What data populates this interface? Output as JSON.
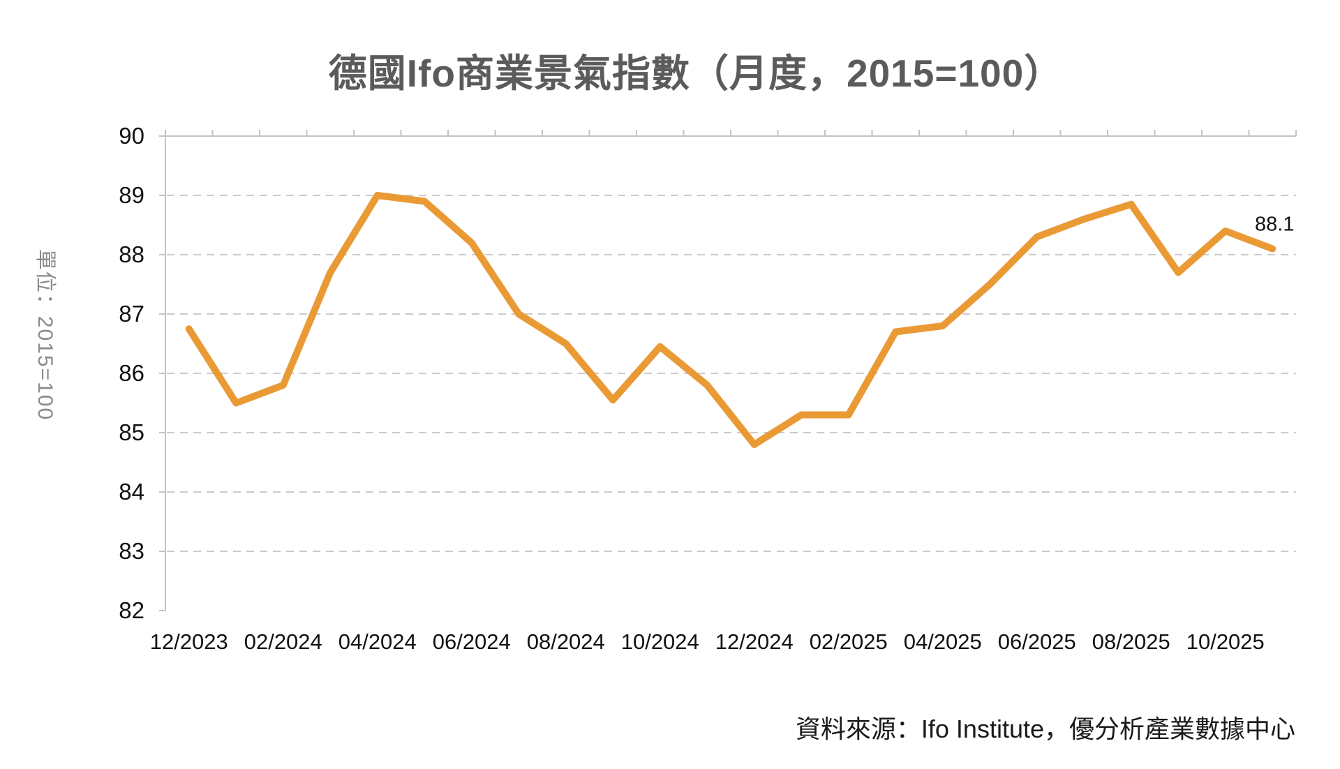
{
  "title": "德國Ifo商業景氣指數（月度，2015=100）",
  "y_axis_title": "單位：2015=100",
  "source_note": "資料來源：Ifo Institute，優分析產業數據中心",
  "last_value_label": "88.1",
  "colors": {
    "line": "#EA9A35",
    "title": "#5B5B5D",
    "axis": "#C2C2CC",
    "grid": "#CBCBCB",
    "tick_label": "#111111",
    "y_axis_title": "#8A8A8A",
    "source": "#1A1A1A",
    "background": "#FFFFFF"
  },
  "chart_data": {
    "type": "line",
    "title": "德國Ifo商業景氣指數（月度，2015=100）",
    "x": [
      "12/2023",
      "01/2024",
      "02/2024",
      "03/2024",
      "04/2024",
      "05/2024",
      "06/2024",
      "07/2024",
      "08/2024",
      "09/2024",
      "10/2024",
      "11/2024",
      "12/2024",
      "01/2025",
      "02/2025",
      "03/2025",
      "04/2025",
      "05/2025",
      "06/2025",
      "07/2025",
      "08/2025",
      "09/2025",
      "10/2025",
      "11/2025"
    ],
    "values": [
      86.75,
      85.5,
      85.8,
      87.7,
      89.0,
      88.9,
      88.2,
      87.0,
      86.5,
      85.55,
      86.45,
      85.8,
      84.8,
      85.3,
      85.3,
      86.7,
      86.8,
      87.5,
      88.3,
      88.6,
      88.85,
      87.7,
      88.4,
      88.1
    ],
    "x_tick_labels": [
      "12/2023",
      "02/2024",
      "04/2024",
      "06/2024",
      "08/2024",
      "10/2024",
      "12/2024",
      "02/2025",
      "04/2025",
      "06/2025",
      "08/2025",
      "10/2025"
    ],
    "x_tick_every": 2,
    "xlabel": "",
    "ylabel": "單位：2015=100",
    "ylim": [
      82,
      90
    ],
    "y_ticks": [
      82,
      83,
      84,
      85,
      86,
      87,
      88,
      89,
      90
    ],
    "grid": "horizontal-dashed",
    "legend": "none",
    "annotation": {
      "text": "88.1",
      "x": "11/2025",
      "y": 88.1
    }
  }
}
